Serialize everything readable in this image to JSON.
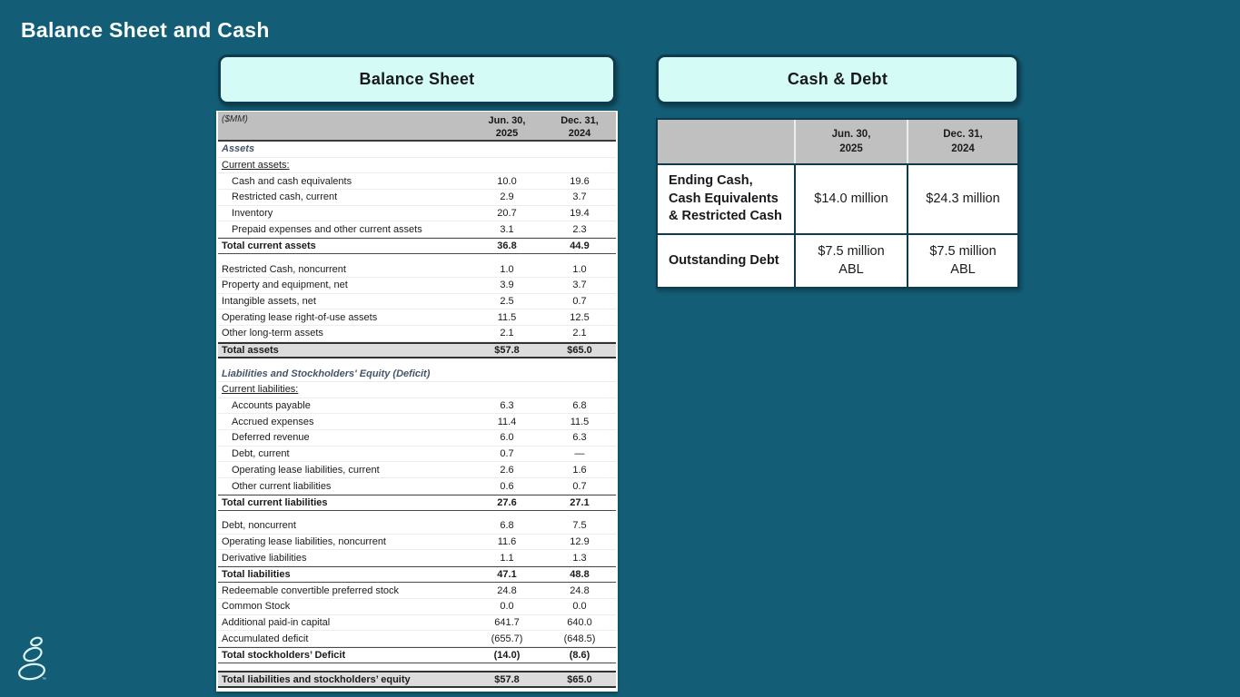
{
  "slide": {
    "title": "Balance Sheet and Cash"
  },
  "colors": {
    "background": "#135e76",
    "panel_fill": "#d5fbf6",
    "panel_border": "#0e3c4e",
    "table_header_gray": "#bfbfbf",
    "total_row_gray": "#dcdcdc",
    "section_heading": "#44546a"
  },
  "balance_sheet": {
    "panel_title": "Balance Sheet",
    "unit_label": "($MM)",
    "col_headers": [
      "Jun. 30,\n2025",
      "Dec. 31,\n2024"
    ],
    "rows": [
      {
        "label": "Assets",
        "style": "section"
      },
      {
        "label": "Current assets:",
        "style": "sub"
      },
      {
        "label": "Cash and cash equivalents",
        "v2025": "10.0",
        "v2024": "19.6",
        "style": "item",
        "indent": 1
      },
      {
        "label": "Restricted cash, current",
        "v2025": "2.9",
        "v2024": "3.7",
        "style": "item",
        "indent": 1
      },
      {
        "label": "Inventory",
        "v2025": "20.7",
        "v2024": "19.4",
        "style": "item",
        "indent": 1
      },
      {
        "label": "Prepaid expenses and other current assets",
        "v2025": "3.1",
        "v2024": "2.3",
        "style": "item",
        "indent": 1
      },
      {
        "label": "Total current assets",
        "v2025": "36.8",
        "v2024": "44.9",
        "style": "total"
      },
      {
        "style": "spacer"
      },
      {
        "label": "Restricted Cash, noncurrent",
        "v2025": "1.0",
        "v2024": "1.0",
        "style": "item",
        "indent": 0
      },
      {
        "label": "Property and equipment, net",
        "v2025": "3.9",
        "v2024": "3.7",
        "style": "item",
        "indent": 0
      },
      {
        "label": "Intangible assets, net",
        "v2025": "2.5",
        "v2024": "0.7",
        "style": "item",
        "indent": 0
      },
      {
        "label": "Operating lease right-of-use assets",
        "v2025": "11.5",
        "v2024": "12.5",
        "style": "item",
        "indent": 0
      },
      {
        "label": "Other long-term assets",
        "v2025": "2.1",
        "v2024": "2.1",
        "style": "item",
        "indent": 0
      },
      {
        "label": "Total assets",
        "v2025": "$57.8",
        "v2024": "$65.0",
        "style": "gtotal"
      },
      {
        "style": "spacer"
      },
      {
        "label": "Liabilities and Stockholders' Equity (Deficit)",
        "style": "section"
      },
      {
        "label": "Current liabilities:",
        "style": "sub"
      },
      {
        "label": "Accounts payable",
        "v2025": "6.3",
        "v2024": "6.8",
        "style": "item",
        "indent": 1
      },
      {
        "label": "Accrued expenses",
        "v2025": "11.4",
        "v2024": "11.5",
        "style": "item",
        "indent": 1
      },
      {
        "label": "Deferred revenue",
        "v2025": "6.0",
        "v2024": "6.3",
        "style": "item",
        "indent": 1
      },
      {
        "label": "Debt, current",
        "v2025": "0.7",
        "v2024": "—",
        "style": "item",
        "indent": 1
      },
      {
        "label": "Operating lease liabilities, current",
        "v2025": "2.6",
        "v2024": "1.6",
        "style": "item",
        "indent": 1
      },
      {
        "label": "Other current liabilities",
        "v2025": "0.6",
        "v2024": "0.7",
        "style": "item",
        "indent": 1
      },
      {
        "label": "Total current liabilities",
        "v2025": "27.6",
        "v2024": "27.1",
        "style": "total"
      },
      {
        "style": "spacer"
      },
      {
        "label": "Debt, noncurrent",
        "v2025": "6.8",
        "v2024": "7.5",
        "style": "item",
        "indent": 0
      },
      {
        "label": "Operating lease liabilities, noncurrent",
        "v2025": "11.6",
        "v2024": "12.9",
        "style": "item",
        "indent": 0
      },
      {
        "label": "Derivative liabilities",
        "v2025": "1.1",
        "v2024": "1.3",
        "style": "item",
        "indent": 0
      },
      {
        "label": "Total liabilities",
        "v2025": "47.1",
        "v2024": "48.8",
        "style": "total"
      },
      {
        "label": "Redeemable convertible preferred stock",
        "v2025": "24.8",
        "v2024": "24.8",
        "style": "item",
        "indent": 0
      },
      {
        "label": "Common Stock",
        "v2025": "0.0",
        "v2024": "0.0",
        "style": "item",
        "indent": 0
      },
      {
        "label": "Additional paid-in capital",
        "v2025": "641.7",
        "v2024": "640.0",
        "style": "item",
        "indent": 0
      },
      {
        "label": "Accumulated deficit",
        "v2025": "(655.7)",
        "v2024": "(648.5)",
        "style": "item",
        "indent": 0
      },
      {
        "label": "Total stockholders’ Deficit",
        "v2025": "(14.0)",
        "v2024": "(8.6)",
        "style": "total"
      },
      {
        "style": "spacer"
      },
      {
        "label": "Total liabilities and stockholders’ equity",
        "v2025": "$57.8",
        "v2024": "$65.0",
        "style": "gtotal"
      }
    ]
  },
  "cash_debt": {
    "panel_title": "Cash & Debt",
    "col_headers": [
      "Jun. 30,\n2025",
      "Dec. 31,\n2024"
    ],
    "rows": [
      {
        "label": "Ending Cash, Cash Equivalents & Restricted Cash",
        "v2025": "$14.0 million",
        "v2024": "$24.3 million"
      },
      {
        "label": "Outstanding Debt",
        "v2025": "$7.5 million\nABL",
        "v2024": "$7.5 million\nABL"
      }
    ]
  },
  "logo": {
    "icon": "stacked-pebbles-logo",
    "trademark": "™"
  }
}
